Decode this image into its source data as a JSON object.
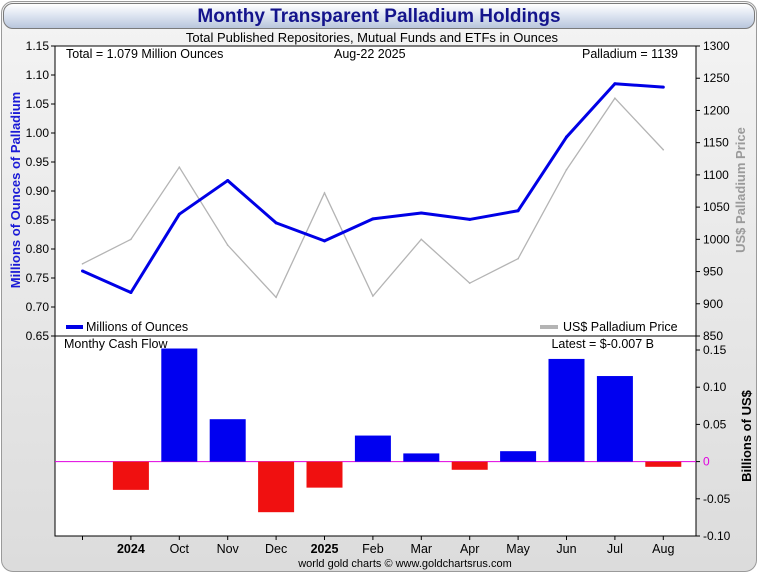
{
  "title": "Monthy Transparent Palladium Holdings",
  "subtitle": "Total Published Repositories, Mutual Funds and ETFs in Ounces",
  "info": {
    "total": "Total = 1.079 Million Ounces",
    "date": "Aug-22  2025",
    "price": "Palladium = 1139"
  },
  "footer": "world gold charts © www.goldchartsrus.com",
  "colors": {
    "holdings": "#0000e6",
    "price": "#b4b4b4",
    "positive": "#0000f0",
    "negative": "#f01010",
    "title": "#14148c",
    "zero_line": "#e000e0"
  },
  "chart_data": [
    {
      "type": "line",
      "categories": [
        "",
        "2024",
        "Oct",
        "Nov",
        "Dec",
        "2025",
        "Feb",
        "Mar",
        "Apr",
        "May",
        "Jun",
        "Jul",
        "Aug"
      ],
      "ylabel": "Millions of Ounces of Palladium",
      "y2label": "US$ Palladium Price",
      "ylim": [
        0.65,
        1.15
      ],
      "y2lim": [
        850,
        1300
      ],
      "yticks": [
        "0.65",
        "0.70",
        "0.75",
        "0.80",
        "0.85",
        "0.90",
        "0.95",
        "1.00",
        "1.05",
        "1.10",
        "1.15"
      ],
      "y2ticks": [
        "850",
        "900",
        "950",
        "1000",
        "1050",
        "1100",
        "1150",
        "1200",
        "1250",
        "1300"
      ],
      "legend_position": "bottom",
      "series": [
        {
          "name": "Millions of Ounces",
          "axis": "left",
          "values": [
            0.762,
            0.725,
            0.86,
            0.918,
            0.845,
            0.814,
            0.852,
            0.862,
            0.851,
            0.866,
            0.993,
            1.085,
            1.079
          ]
        },
        {
          "name": "US$ Palladium Price",
          "axis": "right",
          "values": [
            962,
            1000,
            1112,
            991,
            910,
            1072,
            912,
            1000,
            932,
            970,
            1108,
            1219,
            1139
          ]
        }
      ]
    },
    {
      "type": "bar",
      "title": "Monthy Cash Flow",
      "annotation": "Latest = $-0.007 B",
      "ylabel": "Billions of US$",
      "ylim": [
        -0.1,
        0.15
      ],
      "yticks": [
        "-0.10",
        "-0.05",
        "0",
        "0.05",
        "0.10",
        "0.15"
      ],
      "categories": [
        "2024",
        "Oct",
        "Nov",
        "Dec",
        "2025",
        "Feb",
        "Mar",
        "Apr",
        "May",
        "Jun",
        "Jul",
        "Aug"
      ],
      "values": [
        -0.038,
        0.152,
        0.057,
        -0.068,
        -0.035,
        0.035,
        0.011,
        -0.011,
        0.014,
        0.138,
        0.115,
        -0.007
      ]
    }
  ]
}
